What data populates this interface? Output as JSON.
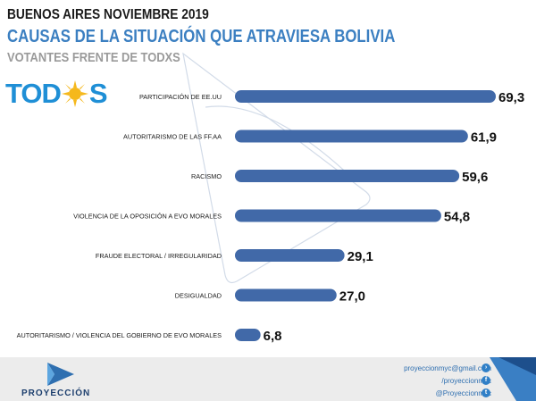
{
  "header": {
    "line1": "BUENOS AIRES NOVIEMBRE 2019",
    "line2": "CAUSAS DE LA SITUACIÓN QUE ATRAVIESA BOLIVIA",
    "line3": "VOTANTES FRENTE DE TODXS"
  },
  "logo": {
    "left": "TOD",
    "right": "S",
    "mark_icon": "sun-icon"
  },
  "chart_data": {
    "type": "bar",
    "orientation": "horizontal",
    "categories": [
      "PARTICIPACIÓN DE EE.UU",
      "AUTORITARISMO DE LAS FF.AA",
      "RACISMO",
      "VIOLENCIA DE LA OPOSICIÓN A EVO MORALES",
      "FRAUDE ELECTORAL / IRREGULARIDAD",
      "DESIGUALDAD",
      "AUTORITARISMO / VIOLENCIA DEL GOBIERNO DE EVO MORALES"
    ],
    "values": [
      69.3,
      61.9,
      59.6,
      54.8,
      29.1,
      27.0,
      6.8
    ],
    "value_labels": [
      "69,3",
      "61,9",
      "59,6",
      "54,8",
      "29,1",
      "27,0",
      "6,8"
    ],
    "xlim": [
      0,
      69.3
    ],
    "grid": false,
    "bar_color": "#4169a8"
  },
  "footer": {
    "brand": "PROYECCIÓN",
    "email": "proyeccionmyc@gmail.com",
    "facebook": "/proyeccionmyc",
    "twitter": "@Proyeccionmyc",
    "icons": [
      "arrow-icon",
      "facebook-icon",
      "twitter-icon"
    ]
  }
}
